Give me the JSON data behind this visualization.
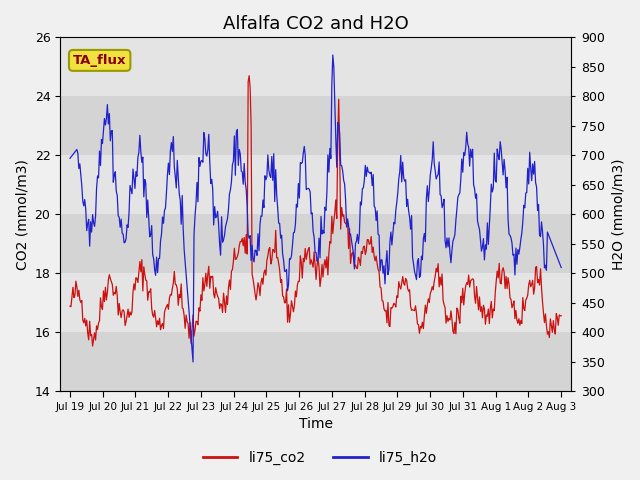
{
  "title": "Alfalfa CO2 and H2O",
  "xlabel": "Time",
  "ylabel_left": "CO2 (mmol/m3)",
  "ylabel_right": "H2O (mmol/m3)",
  "co2_ylim": [
    14,
    26
  ],
  "h2o_ylim": [
    300,
    900
  ],
  "co2_yticks": [
    14,
    16,
    18,
    20,
    22,
    24,
    26
  ],
  "h2o_yticks": [
    300,
    350,
    400,
    450,
    500,
    550,
    600,
    650,
    700,
    750,
    800,
    850,
    900
  ],
  "line_color_co2": "#cc1111",
  "line_color_h2o": "#2222cc",
  "legend_labels": [
    "li75_co2",
    "li75_h2o"
  ],
  "annotation_text": "TA_flux",
  "annotation_color": "#8B0000",
  "annotation_bg": "#f0e040",
  "bg_color": "#f0f0f0",
  "band_colors": [
    "#d4d4d4",
    "#e4e4e4"
  ],
  "title_fontsize": 13,
  "axis_fontsize": 10,
  "tick_fontsize": 9,
  "xtick_labels": [
    "Jul 19",
    "Jul 20",
    "Jul 21",
    "Jul 22",
    "Jul 23",
    "Jul 24",
    "Jul 25",
    "Jul 26",
    "Jul 27",
    "Jul 28",
    "Jul 29",
    "Jul 30",
    "Jul 31",
    "Aug 1",
    "Aug 2",
    "Aug 3"
  ],
  "num_points": 500
}
